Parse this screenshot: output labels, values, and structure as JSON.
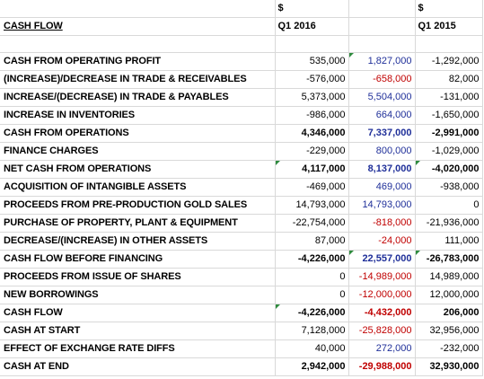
{
  "sheet": {
    "title": "CASH FLOW",
    "currency_2016": "$",
    "currency_2015": "$",
    "period_2016": "Q1 2016",
    "period_2015": "Q1 2015",
    "rows": [
      {
        "label": "CASH FROM OPERATING PROFIT",
        "q1_2016": "535,000",
        "middle": "1,827,000",
        "q1_2015": "-1,292,000"
      },
      {
        "label": "(INCREASE)/DECREASE IN TRADE & RECEIVABLES",
        "q1_2016": "-576,000",
        "middle": "-658,000",
        "q1_2015": "82,000"
      },
      {
        "label": "INCREASE/(DECREASE) IN TRADE & PAYABLES",
        "q1_2016": "5,373,000",
        "middle": "5,504,000",
        "q1_2015": "-131,000"
      },
      {
        "label": "INCREASE IN INVENTORIES",
        "q1_2016": "-986,000",
        "middle": "664,000",
        "q1_2015": "-1,650,000"
      },
      {
        "label": "CASH FROM OPERATIONS",
        "q1_2016": "4,346,000",
        "middle": "7,337,000",
        "q1_2015": "-2,991,000"
      },
      {
        "label": "FINANCE CHARGES",
        "q1_2016": "-229,000",
        "middle": "800,000",
        "q1_2015": "-1,029,000"
      },
      {
        "label": "NET CASH FROM OPERATIONS",
        "q1_2016": "4,117,000",
        "middle": "8,137,000",
        "q1_2015": "-4,020,000"
      },
      {
        "label": "ACQUISITION OF INTANGIBLE ASSETS",
        "q1_2016": "-469,000",
        "middle": "469,000",
        "q1_2015": "-938,000"
      },
      {
        "label": "PROCEEDS FROM PRE-PRODUCTION GOLD SALES",
        "q1_2016": "14,793,000",
        "middle": "14,793,000",
        "q1_2015": "0"
      },
      {
        "label": "PURCHASE OF PROPERTY, PLANT & EQUIPMENT",
        "q1_2016": "-22,754,000",
        "middle": "-818,000",
        "q1_2015": "-21,936,000"
      },
      {
        "label": "DECREASE/(INCREASE) IN OTHER ASSETS",
        "q1_2016": "87,000",
        "middle": "-24,000",
        "q1_2015": "111,000"
      },
      {
        "label": "CASH FLOW BEFORE FINANCING",
        "q1_2016": "-4,226,000",
        "middle": "22,557,000",
        "q1_2015": "-26,783,000"
      },
      {
        "label": "PROCEEDS FROM ISSUE OF SHARES",
        "q1_2016": "0",
        "middle": "-14,989,000",
        "q1_2015": "14,989,000"
      },
      {
        "label": "NEW BORROWINGS",
        "q1_2016": "0",
        "middle": "-12,000,000",
        "q1_2015": "12,000,000"
      },
      {
        "label": "CASH FLOW",
        "q1_2016": "-4,226,000",
        "middle": "-4,432,000",
        "q1_2015": "206,000"
      },
      {
        "label": "CASH AT START",
        "q1_2016": "7,128,000",
        "middle": "-25,828,000",
        "q1_2015": "32,956,000"
      },
      {
        "label": "EFFECT OF EXCHANGE RATE DIFFS",
        "q1_2016": "40,000",
        "middle": "272,000",
        "q1_2015": "-232,000"
      },
      {
        "label": "CASH AT END",
        "q1_2016": "2,942,000",
        "middle": "-29,988,000",
        "q1_2015": "32,930,000"
      }
    ]
  },
  "colors": {
    "positive_middle": "#1f2f99",
    "negative_middle": "#c00000",
    "grid": "#d9d9d9",
    "comment_marker": "#2e8b3e"
  }
}
